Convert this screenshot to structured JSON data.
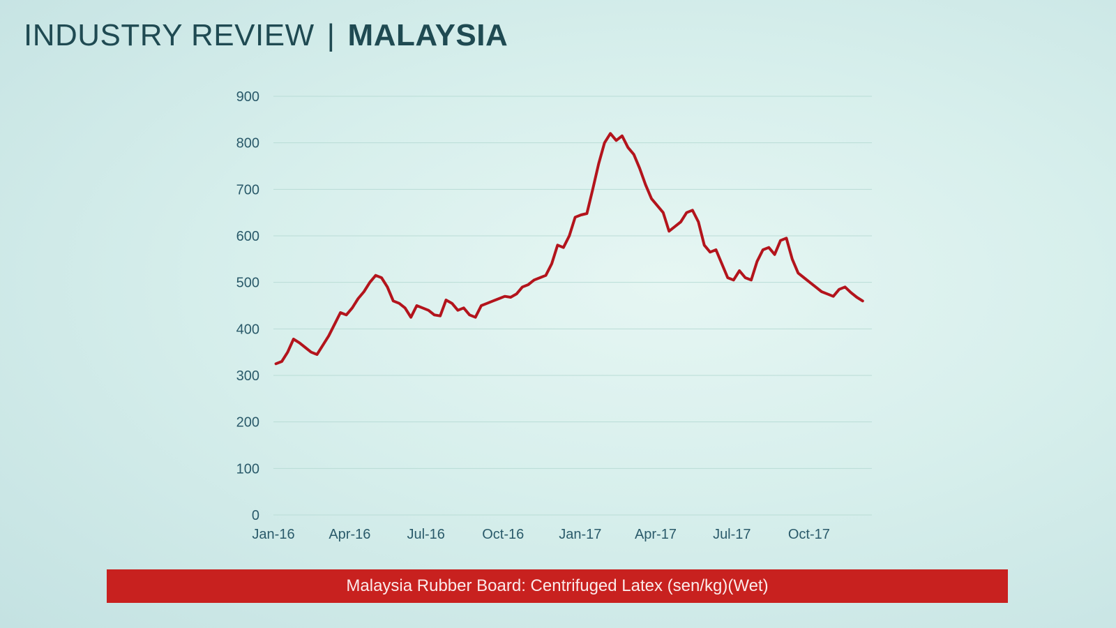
{
  "header": {
    "title_light": "INDUSTRY REVIEW",
    "separator": "|",
    "title_bold": "MALAYSIA"
  },
  "colors": {
    "line": "#b3141c",
    "caption_bg": "#c8211f",
    "title": "#1f4a52"
  },
  "chart_data": {
    "type": "line",
    "title": "",
    "xlabel": "",
    "ylabel": "",
    "ylim": [
      0,
      900
    ],
    "yticks": [
      0,
      100,
      200,
      300,
      400,
      500,
      600,
      700,
      800,
      900
    ],
    "xticks": [
      "Jan-16",
      "Apr-16",
      "Jul-16",
      "Oct-16",
      "Jan-17",
      "Apr-17",
      "Jul-17",
      "Oct-17"
    ],
    "grid": true,
    "legend": "none",
    "caption": "Malaysia Rubber Board: Centrifuged Latex (sen/kg)(Wet)",
    "series": [
      {
        "x": [
          "2016-01-04",
          "2016-01-11",
          "2016-01-18",
          "2016-01-25",
          "2016-02-01",
          "2016-02-08",
          "2016-02-15",
          "2016-02-22",
          "2016-02-29",
          "2016-03-07",
          "2016-03-14",
          "2016-03-21",
          "2016-03-28",
          "2016-04-04",
          "2016-04-11",
          "2016-04-18",
          "2016-04-25",
          "2016-05-02",
          "2016-05-09",
          "2016-05-16",
          "2016-05-23",
          "2016-05-30",
          "2016-06-06",
          "2016-06-13",
          "2016-06-20",
          "2016-06-27",
          "2016-07-04",
          "2016-07-11",
          "2016-07-18",
          "2016-07-25",
          "2016-08-01",
          "2016-08-08",
          "2016-08-15",
          "2016-08-22",
          "2016-08-29",
          "2016-09-05",
          "2016-09-12",
          "2016-09-19",
          "2016-09-26",
          "2016-10-03",
          "2016-10-10",
          "2016-10-17",
          "2016-10-24",
          "2016-10-31",
          "2016-11-07",
          "2016-11-14",
          "2016-11-21",
          "2016-11-28",
          "2016-12-05",
          "2016-12-12",
          "2016-12-19",
          "2016-12-26",
          "2017-01-02",
          "2017-01-09",
          "2017-01-16",
          "2017-01-23",
          "2017-01-30",
          "2017-02-06",
          "2017-02-13",
          "2017-02-20",
          "2017-02-27",
          "2017-03-06",
          "2017-03-13",
          "2017-03-20",
          "2017-03-27",
          "2017-04-03",
          "2017-04-10",
          "2017-04-17",
          "2017-04-24",
          "2017-05-01",
          "2017-05-08",
          "2017-05-15",
          "2017-05-22",
          "2017-05-29",
          "2017-06-05",
          "2017-06-12",
          "2017-06-19",
          "2017-06-26",
          "2017-07-03",
          "2017-07-10",
          "2017-07-17",
          "2017-07-24",
          "2017-07-31",
          "2017-08-07",
          "2017-08-14",
          "2017-08-21",
          "2017-08-28",
          "2017-09-04",
          "2017-09-11",
          "2017-09-18",
          "2017-09-25",
          "2017-10-02",
          "2017-10-09",
          "2017-10-16",
          "2017-10-23",
          "2017-10-30",
          "2017-11-06",
          "2017-11-13",
          "2017-11-20",
          "2017-11-27",
          "2017-12-04"
        ],
        "y": [
          325,
          330,
          350,
          378,
          370,
          360,
          350,
          345,
          365,
          385,
          410,
          435,
          430,
          445,
          465,
          480,
          500,
          515,
          510,
          490,
          460,
          455,
          445,
          425,
          450,
          445,
          440,
          430,
          428,
          462,
          455,
          440,
          445,
          430,
          425,
          450,
          455,
          460,
          465,
          470,
          468,
          475,
          490,
          495,
          505,
          510,
          515,
          540,
          580,
          575,
          600,
          640,
          645,
          648,
          700,
          755,
          800,
          820,
          805,
          815,
          790,
          775,
          745,
          710,
          680,
          665,
          650,
          610,
          620,
          630,
          650,
          655,
          630,
          580,
          565,
          570,
          540,
          510,
          505,
          525,
          510,
          505,
          545,
          570,
          575,
          560,
          590,
          595,
          550,
          520,
          510,
          500,
          490,
          480,
          475,
          470,
          485,
          490,
          478,
          468,
          460
        ]
      }
    ]
  }
}
